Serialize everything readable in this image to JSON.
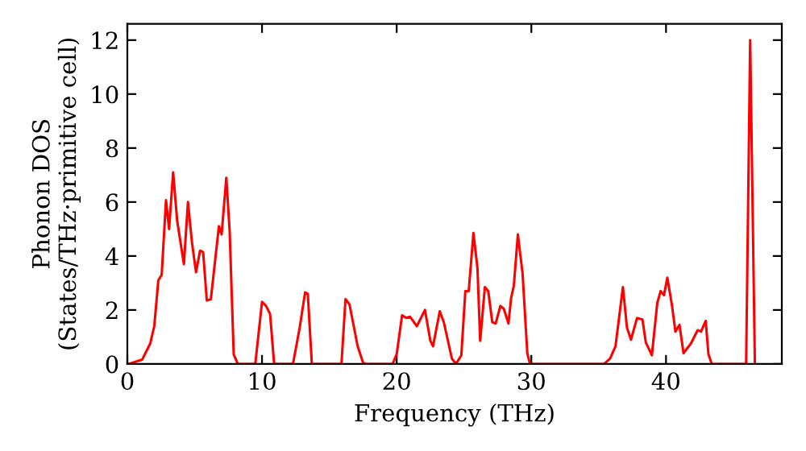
{
  "chart_data": {
    "type": "line",
    "xlabel": "Frequency (THz)",
    "ylabel": "Phonon DOS\n(States/THz·primitive cell)",
    "xlim": [
      0,
      48.6
    ],
    "ylim": [
      0,
      12.6
    ],
    "xticks": [
      0,
      10,
      20,
      30,
      40
    ],
    "yticks": [
      0,
      2,
      4,
      6,
      8,
      10,
      12
    ],
    "grid": false,
    "legend": false,
    "marker": "none",
    "line_style": "solid",
    "series": [
      {
        "color": "#ff0000",
        "x": [
          0.1,
          1.1,
          1.7,
          2.0,
          2.3,
          2.55,
          2.87,
          3.1,
          3.4,
          3.7,
          4.2,
          4.5,
          4.8,
          5.1,
          5.4,
          5.63,
          5.9,
          6.2,
          6.8,
          7.0,
          7.35,
          7.6,
          7.9,
          8.2,
          9.5,
          10.0,
          10.3,
          10.6,
          10.9,
          12.3,
          12.8,
          13.2,
          13.4,
          13.7,
          15.9,
          16.2,
          16.5,
          17.1,
          17.5,
          17.7,
          19.7,
          20.0,
          20.4,
          20.7,
          21.0,
          21.5,
          22.1,
          22.5,
          22.7,
          23.2,
          23.5,
          24.1,
          24.4,
          24.8,
          25.1,
          25.35,
          25.7,
          26.0,
          26.2,
          26.55,
          26.8,
          27.1,
          27.35,
          27.7,
          27.95,
          28.3,
          28.5,
          28.7,
          29.0,
          29.35,
          29.7,
          29.9,
          35.4,
          35.85,
          36.25,
          36.8,
          37.1,
          37.4,
          37.85,
          38.25,
          38.5,
          38.95,
          39.35,
          39.6,
          39.85,
          40.1,
          40.45,
          40.7,
          41.0,
          41.3,
          41.85,
          42.35,
          42.6,
          42.95,
          43.15,
          43.4,
          45.95,
          46.25,
          46.6
        ],
        "values": [
          0,
          0.16,
          0.76,
          1.4,
          3.1,
          3.3,
          6.07,
          5.0,
          7.1,
          5.3,
          3.7,
          6.0,
          4.5,
          3.4,
          4.2,
          4.14,
          2.35,
          2.4,
          5.1,
          4.8,
          6.9,
          4.9,
          0.35,
          0,
          0,
          2.3,
          2.15,
          1.85,
          0,
          0,
          1.35,
          2.65,
          2.6,
          0,
          0,
          2.4,
          2.2,
          0.66,
          0.05,
          0,
          0,
          0.36,
          1.8,
          1.71,
          1.75,
          1.4,
          2.0,
          0.86,
          0.66,
          1.95,
          1.55,
          0.2,
          0,
          0.32,
          2.7,
          2.7,
          4.85,
          3.55,
          0.86,
          2.85,
          2.7,
          1.55,
          1.5,
          2.15,
          2.05,
          1.5,
          2.45,
          2.9,
          4.8,
          3.35,
          0.4,
          0,
          0,
          0.2,
          0.66,
          2.85,
          1.35,
          0.9,
          1.7,
          1.65,
          0.8,
          0.32,
          2.25,
          2.7,
          2.55,
          3.2,
          2.15,
          1.2,
          1.45,
          0.4,
          0.76,
          1.25,
          1.2,
          1.6,
          0.36,
          0,
          0,
          12.0,
          0
        ]
      }
    ]
  }
}
